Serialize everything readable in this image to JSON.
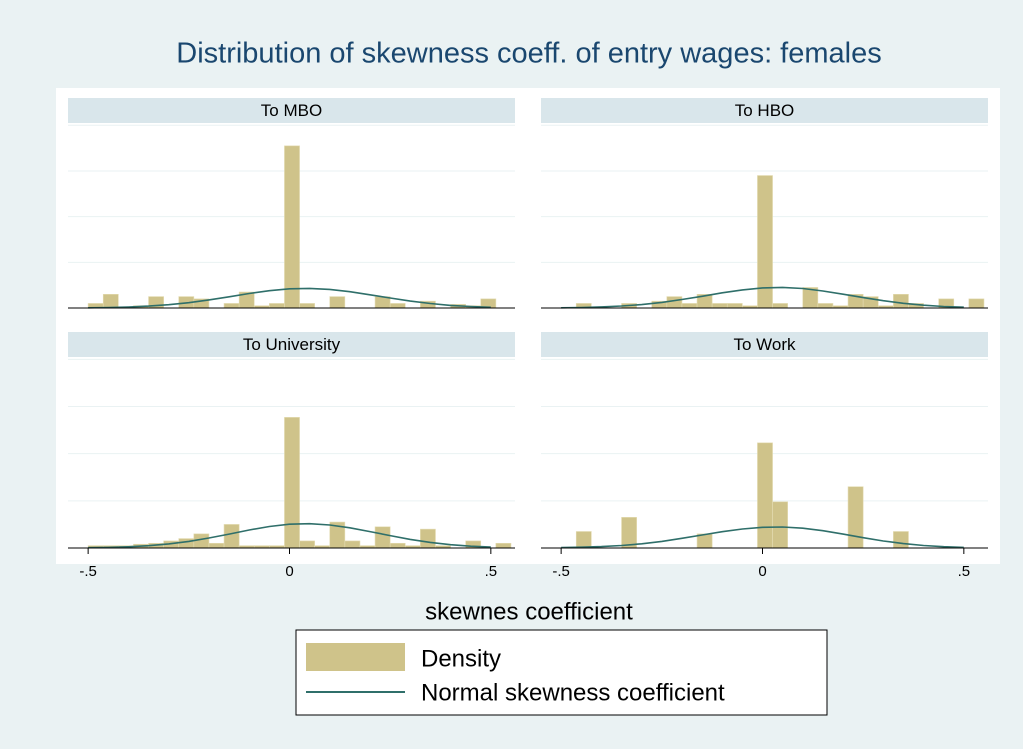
{
  "chart_data": {
    "type": "histogram",
    "title": "Distribution of skewness coeff. of entry wages: females",
    "xlabel": "skewnes coefficient",
    "xlim": [
      -0.55,
      0.56
    ],
    "xticks": [
      {
        "value": -0.5,
        "label": "-.5"
      },
      0,
      {
        "value": 0.5,
        "label": ".5"
      }
    ],
    "ylim": [
      0,
      4.05
    ],
    "yticks": [
      0,
      1,
      2,
      3,
      4
    ],
    "grid": true,
    "bins": [
      -0.5,
      -0.4625,
      -0.425,
      -0.3875,
      -0.35,
      -0.3125,
      -0.275,
      -0.2375,
      -0.2,
      -0.1625,
      -0.125,
      -0.0875,
      -0.05,
      -0.0125,
      0.025,
      0.0625,
      0.1,
      0.1375,
      0.175,
      0.2125,
      0.25,
      0.2875,
      0.325,
      0.3625,
      0.4,
      0.4375,
      0.475,
      0.5125,
      0.55
    ],
    "curve_x": [
      -0.5,
      -0.45,
      -0.4,
      -0.35,
      -0.3,
      -0.25,
      -0.2,
      -0.15,
      -0.1,
      -0.05,
      0,
      0.05,
      0.1,
      0.15,
      0.2,
      0.25,
      0.3,
      0.35,
      0.4,
      0.45,
      0.5
    ],
    "series": [
      {
        "name": "Density",
        "color": "#cfc38a"
      },
      {
        "name": "Normal skewness coefficient",
        "color": "#2f6f6a"
      }
    ],
    "panels": [
      {
        "name": "To MBO",
        "values": [
          0.1,
          0.3,
          0,
          0.05,
          0.25,
          0,
          0.25,
          0.2,
          0,
          0.1,
          0.35,
          0.05,
          0.1,
          3.55,
          0.1,
          0,
          0.25,
          0,
          0,
          0.25,
          0.1,
          0,
          0.15,
          0,
          0.08,
          0.05,
          0.2,
          0
        ],
        "curve": [
          0.005,
          0.011,
          0.022,
          0.041,
          0.072,
          0.117,
          0.177,
          0.246,
          0.318,
          0.379,
          0.42,
          0.43,
          0.407,
          0.357,
          0.29,
          0.218,
          0.152,
          0.098,
          0.058,
          0.032,
          0.016
        ]
      },
      {
        "name": "To HBO",
        "values": [
          0,
          0.1,
          0,
          0,
          0.1,
          0,
          0.15,
          0.25,
          0.1,
          0.3,
          0.1,
          0.1,
          0.05,
          2.9,
          0.1,
          0,
          0.45,
          0.1,
          0.05,
          0.3,
          0.25,
          0.05,
          0.3,
          0.1,
          0,
          0.2,
          0,
          0.2
        ],
        "curve": [
          0.005,
          0.011,
          0.023,
          0.043,
          0.075,
          0.122,
          0.185,
          0.257,
          0.332,
          0.396,
          0.439,
          0.45,
          0.426,
          0.373,
          0.303,
          0.228,
          0.159,
          0.102,
          0.061,
          0.033,
          0.017
        ]
      },
      {
        "name": "To University",
        "values": [
          0.05,
          0.05,
          0.05,
          0.08,
          0.1,
          0.15,
          0.2,
          0.3,
          0.1,
          0.5,
          0.05,
          0.05,
          0.05,
          2.77,
          0.15,
          0.05,
          0.55,
          0.15,
          0.05,
          0.45,
          0.1,
          0.05,
          0.4,
          0.05,
          0,
          0.15,
          0,
          0.1
        ],
        "curve": [
          0.006,
          0.013,
          0.026,
          0.049,
          0.086,
          0.14,
          0.212,
          0.295,
          0.382,
          0.455,
          0.504,
          0.516,
          0.488,
          0.428,
          0.348,
          0.262,
          0.182,
          0.118,
          0.07,
          0.038,
          0.019
        ]
      },
      {
        "name": "To Work",
        "values": [
          0,
          0.35,
          0,
          0,
          0.65,
          0,
          0,
          0,
          0,
          0.3,
          0,
          0,
          0,
          2.23,
          0.98,
          0,
          0,
          0,
          0,
          1.3,
          0,
          0,
          0.35,
          0,
          0,
          0,
          0,
          0
        ],
        "curve": [
          0.008,
          0.016,
          0.03,
          0.053,
          0.089,
          0.14,
          0.205,
          0.276,
          0.346,
          0.402,
          0.438,
          0.445,
          0.419,
          0.366,
          0.295,
          0.218,
          0.148,
          0.093,
          0.053,
          0.028,
          0.013
        ]
      }
    ]
  }
}
